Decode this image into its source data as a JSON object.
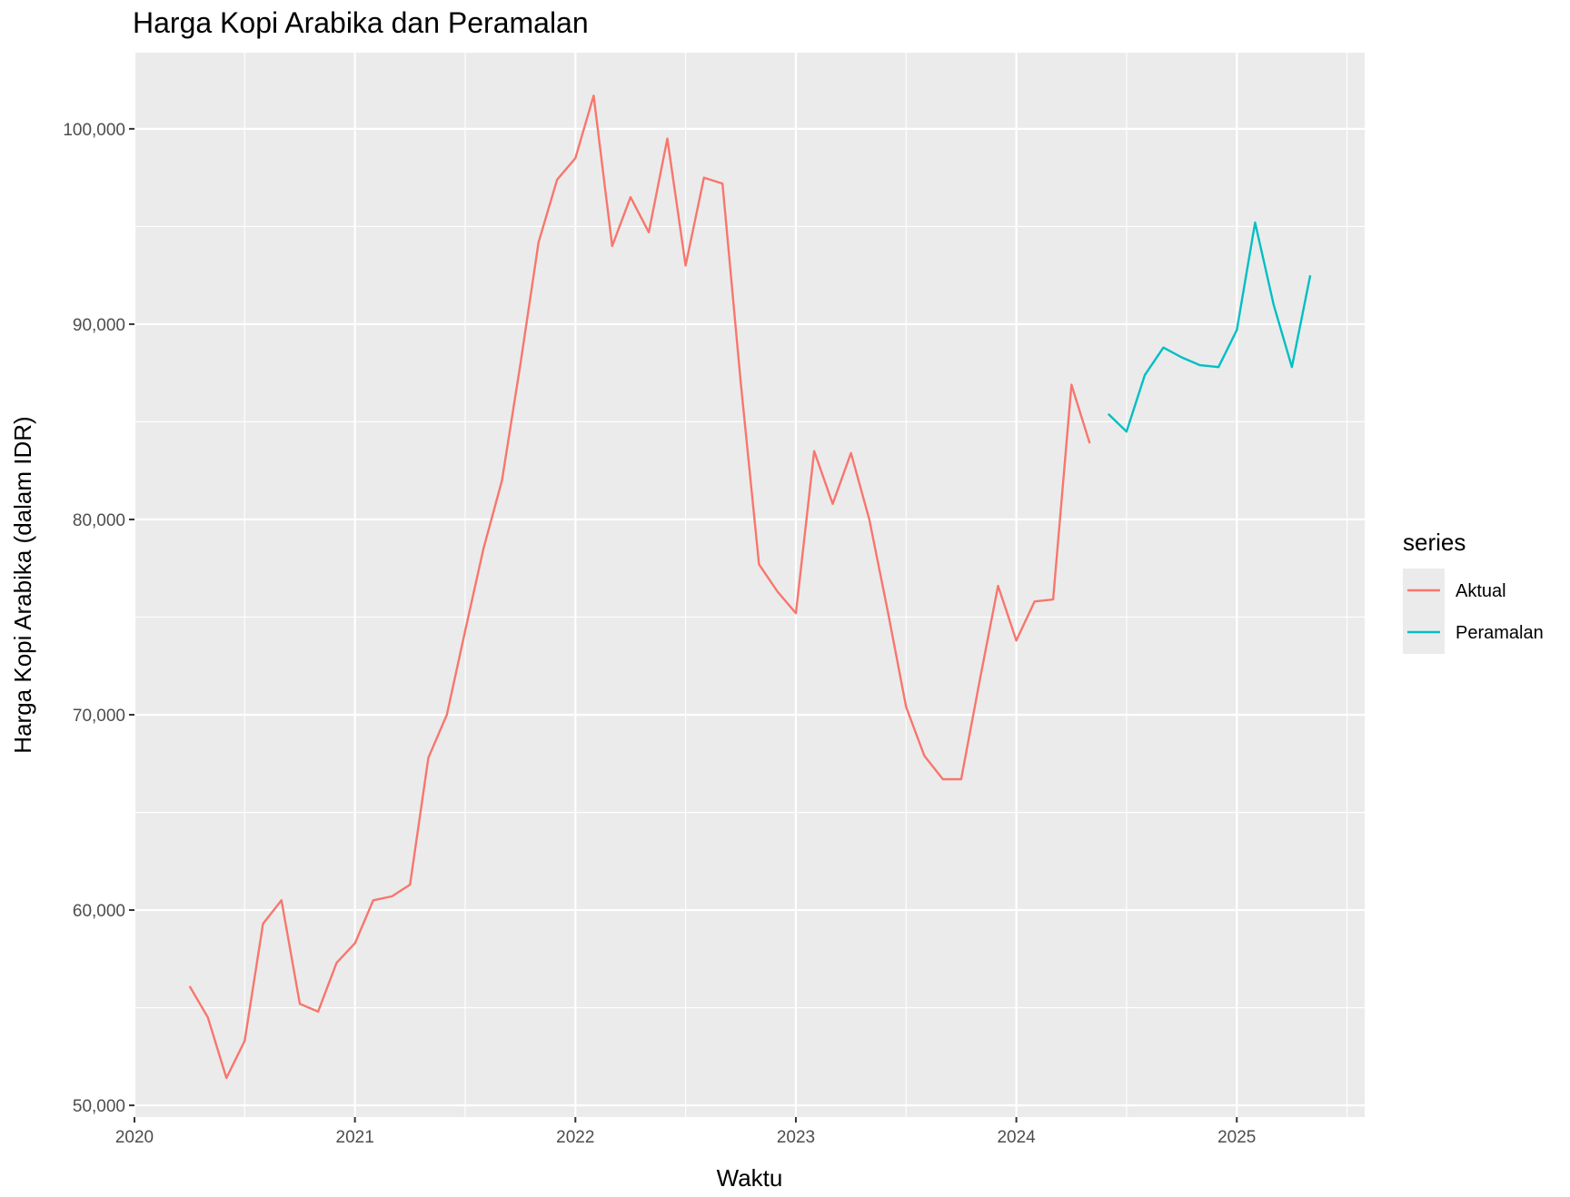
{
  "chart_data": {
    "type": "line",
    "title": "Harga Kopi Arabika dan Peramalan",
    "xlabel": "Waktu",
    "ylabel": "Harga Kopi Arabika (dalam IDR)",
    "x_ticks": [
      "2020",
      "2021",
      "2022",
      "2023",
      "2024",
      "2025"
    ],
    "y_ticks": [
      "50,000",
      "60,000",
      "70,000",
      "80,000",
      "90,000",
      "100,000"
    ],
    "xlim": [
      2020.0,
      2025.58
    ],
    "ylim": [
      49400,
      103900
    ],
    "grid": true,
    "legend": {
      "title": "series",
      "position": "right"
    },
    "series": [
      {
        "name": "Aktual",
        "color": "#F8766D",
        "x": [
          2020.25,
          2020.333,
          2020.417,
          2020.5,
          2020.583,
          2020.667,
          2020.75,
          2020.833,
          2020.917,
          2021.0,
          2021.083,
          2021.167,
          2021.25,
          2021.333,
          2021.417,
          2021.5,
          2021.583,
          2021.667,
          2021.75,
          2021.833,
          2021.917,
          2022.0,
          2022.083,
          2022.167,
          2022.25,
          2022.333,
          2022.417,
          2022.5,
          2022.583,
          2022.667,
          2022.75,
          2022.833,
          2022.917,
          2023.0,
          2023.083,
          2023.167,
          2023.25,
          2023.333,
          2023.417,
          2023.5,
          2023.583,
          2023.667,
          2023.75,
          2023.833,
          2023.917,
          2024.0,
          2024.083,
          2024.167,
          2024.25,
          2024.333
        ],
        "y": [
          56100,
          54500,
          51400,
          53300,
          59300,
          60500,
          55200,
          54800,
          57300,
          58300,
          60500,
          60700,
          61300,
          67800,
          70000,
          74300,
          78500,
          82000,
          87900,
          94200,
          97400,
          98500,
          101700,
          94000,
          96500,
          94700,
          99500,
          93000,
          97500,
          97200,
          87000,
          77700,
          76300,
          75200,
          83500,
          80800,
          83400,
          80000,
          75300,
          70400,
          67900,
          66700,
          66700,
          71700,
          76600,
          73800,
          75800,
          75900,
          86900,
          83900
        ]
      },
      {
        "name": "Peramalan",
        "color": "#00BFC4",
        "x": [
          2024.417,
          2024.5,
          2024.583,
          2024.667,
          2024.75,
          2024.833,
          2024.917,
          2025.0,
          2025.083,
          2025.167,
          2025.25,
          2025.333
        ],
        "y": [
          85400,
          84500,
          87400,
          88800,
          88300,
          87900,
          87800,
          89700,
          95200,
          91000,
          87800,
          92500
        ]
      }
    ]
  }
}
